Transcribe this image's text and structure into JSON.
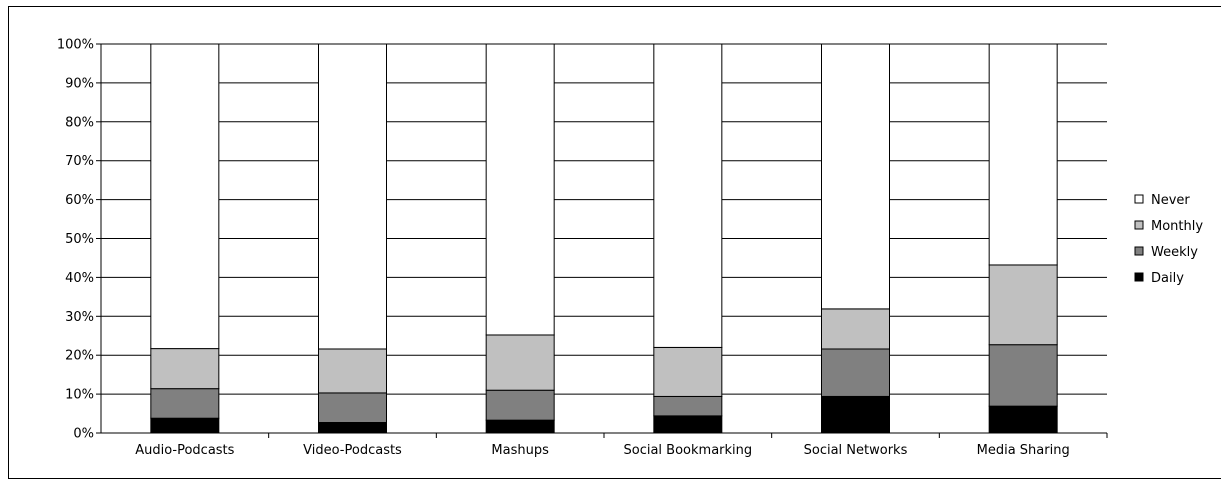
{
  "chart_data": {
    "type": "bar",
    "stacked": true,
    "percent_stacked": true,
    "title": "",
    "xlabel": "",
    "ylabel": "",
    "ylim": [
      0,
      100
    ],
    "y_ticks": [
      "0%",
      "10%",
      "20%",
      "30%",
      "40%",
      "50%",
      "60%",
      "70%",
      "80%",
      "90%",
      "100%"
    ],
    "grid": true,
    "legend_position": "right",
    "categories": [
      "Audio-Podcasts",
      "Video-Podcasts",
      "Mashups",
      "Social Bookmarking",
      "Social Networks",
      "Media Sharing"
    ],
    "series": [
      {
        "name": "Daily",
        "color": "#000000",
        "values": [
          3.8,
          2.7,
          3.3,
          4.4,
          9.4,
          6.9
        ]
      },
      {
        "name": "Weekly",
        "color": "#808080",
        "values": [
          7.6,
          7.6,
          7.7,
          5.0,
          12.2,
          15.8
        ]
      },
      {
        "name": "Monthly",
        "color": "#c0c0c0",
        "values": [
          10.3,
          11.3,
          14.2,
          12.6,
          10.3,
          20.5
        ]
      },
      {
        "name": "Never",
        "color": "#ffffff",
        "values": [
          78.3,
          78.4,
          74.8,
          78.0,
          68.1,
          56.8
        ]
      }
    ],
    "legend_order": [
      "Never",
      "Monthly",
      "Weekly",
      "Daily"
    ]
  }
}
